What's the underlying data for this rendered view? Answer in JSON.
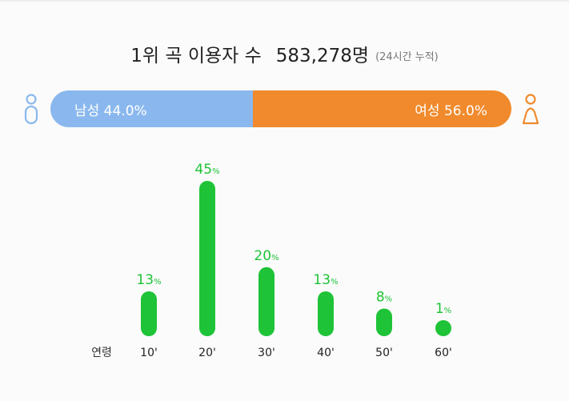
{
  "header": {
    "title": "1위 곡 이용자 수",
    "count": "583,278명",
    "note": "(24시간 누적)"
  },
  "gender": {
    "male": {
      "label": "남성 44.0%",
      "value": 44.0,
      "color": "#8ab8ee"
    },
    "female": {
      "label": "여성 56.0%",
      "value": 56.0,
      "color": "#f08a2c"
    },
    "icons": {
      "male": "male-person-icon",
      "female": "female-person-icon"
    }
  },
  "chart_data": {
    "type": "bar",
    "categories": [
      "10'",
      "20'",
      "30'",
      "40'",
      "50'",
      "60'"
    ],
    "values": [
      13,
      45,
      20,
      13,
      8,
      1
    ],
    "value_unit": "%",
    "xlabel": "연령",
    "color": "#1ec337"
  }
}
